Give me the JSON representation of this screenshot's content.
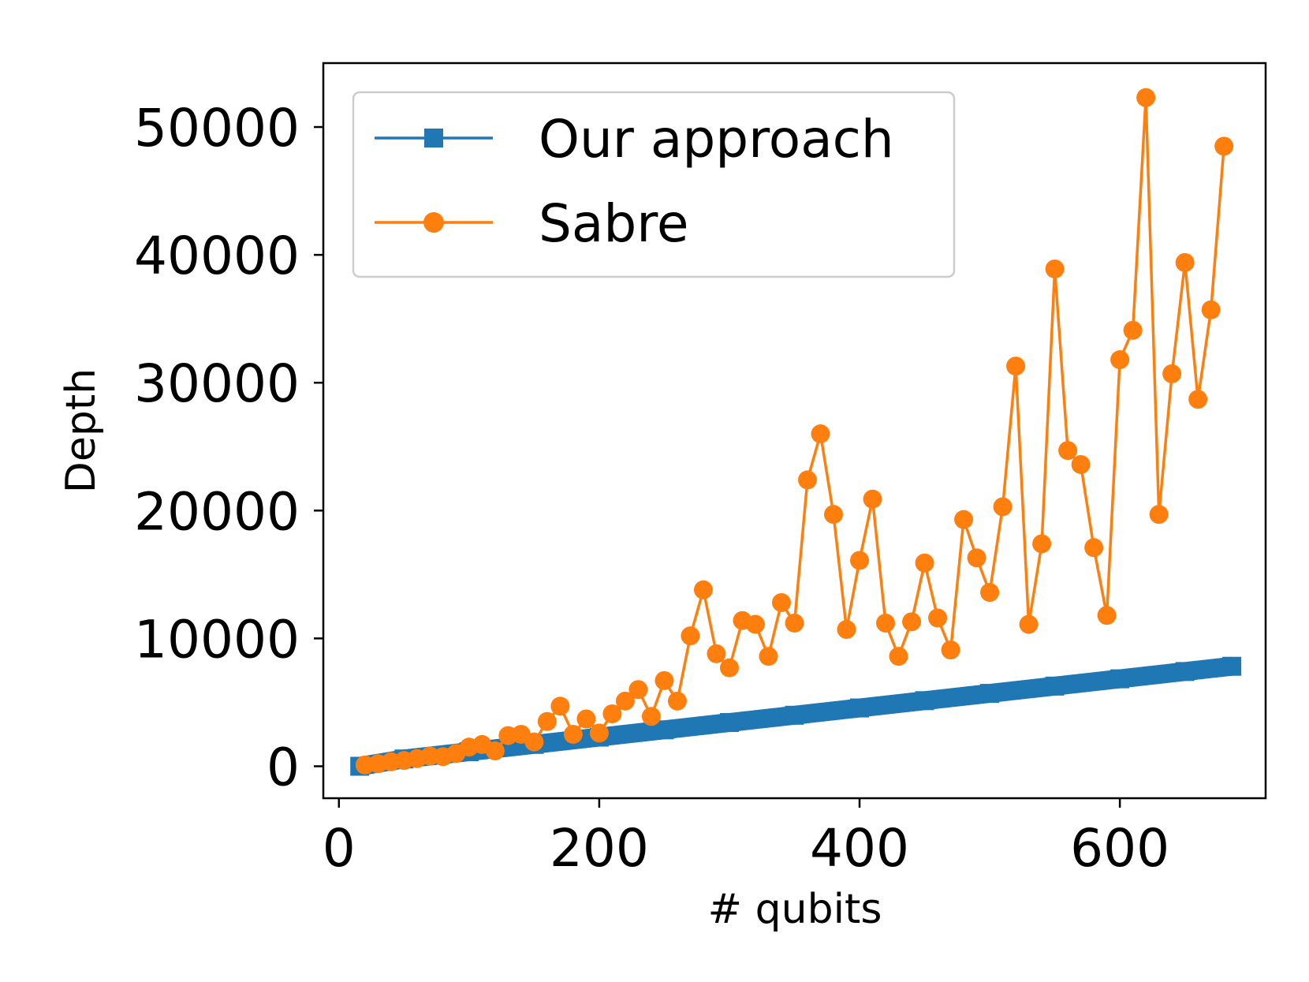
{
  "chart_data": {
    "type": "line",
    "title": "",
    "xlabel": "# qubits",
    "ylabel": "Depth",
    "xlim": [
      -12,
      712
    ],
    "ylim": [
      -2500,
      55000
    ],
    "xticks": [
      0,
      200,
      400,
      600
    ],
    "yticks": [
      0,
      10000,
      20000,
      30000,
      40000,
      50000
    ],
    "xtick_labels": [
      "0",
      "200",
      "400",
      "600"
    ],
    "ytick_labels": [
      "0",
      "10000",
      "20000",
      "30000",
      "40000",
      "50000"
    ],
    "grid": false,
    "legend_position": "upper-left",
    "series": [
      {
        "name": "Our approach",
        "color": "#1f77b4",
        "marker": "square",
        "x": [
          16,
          50,
          100,
          150,
          200,
          250,
          300,
          350,
          400,
          450,
          500,
          550,
          600,
          650,
          686
        ],
        "y": [
          0,
          570,
          1140,
          1710,
          2280,
          2850,
          3420,
          3990,
          4560,
          5130,
          5700,
          6270,
          6840,
          7410,
          7820
        ]
      },
      {
        "name": "Sabre",
        "color": "#ff7f0e",
        "marker": "circle",
        "x": [
          20,
          30,
          40,
          50,
          60,
          70,
          80,
          90,
          100,
          110,
          120,
          130,
          140,
          150,
          160,
          170,
          180,
          190,
          200,
          210,
          220,
          230,
          240,
          250,
          260,
          270,
          280,
          290,
          300,
          310,
          320,
          330,
          340,
          350,
          360,
          370,
          380,
          390,
          400,
          410,
          420,
          430,
          440,
          450,
          460,
          470,
          480,
          490,
          500,
          510,
          520,
          530,
          540,
          550,
          560,
          570,
          580,
          590,
          600,
          610,
          620,
          630,
          640,
          650,
          660,
          670,
          680
        ],
        "y": [
          100,
          200,
          350,
          450,
          600,
          800,
          750,
          1000,
          1500,
          1700,
          1200,
          2400,
          2500,
          1900,
          3500,
          4700,
          2500,
          3700,
          2600,
          4100,
          5100,
          6000,
          3900,
          6700,
          5100,
          10200,
          13800,
          8800,
          7700,
          11400,
          11100,
          8600,
          12800,
          11200,
          22400,
          26000,
          19700,
          10700,
          16100,
          20900,
          11200,
          8600,
          11300,
          15900,
          11600,
          9100,
          19300,
          16300,
          13600,
          20300,
          31300,
          11100,
          17400,
          38900,
          24700,
          23600,
          17100,
          11800,
          31800,
          34100,
          52300,
          19700,
          30700,
          39400,
          28700,
          35700,
          48500
        ]
      }
    ]
  }
}
